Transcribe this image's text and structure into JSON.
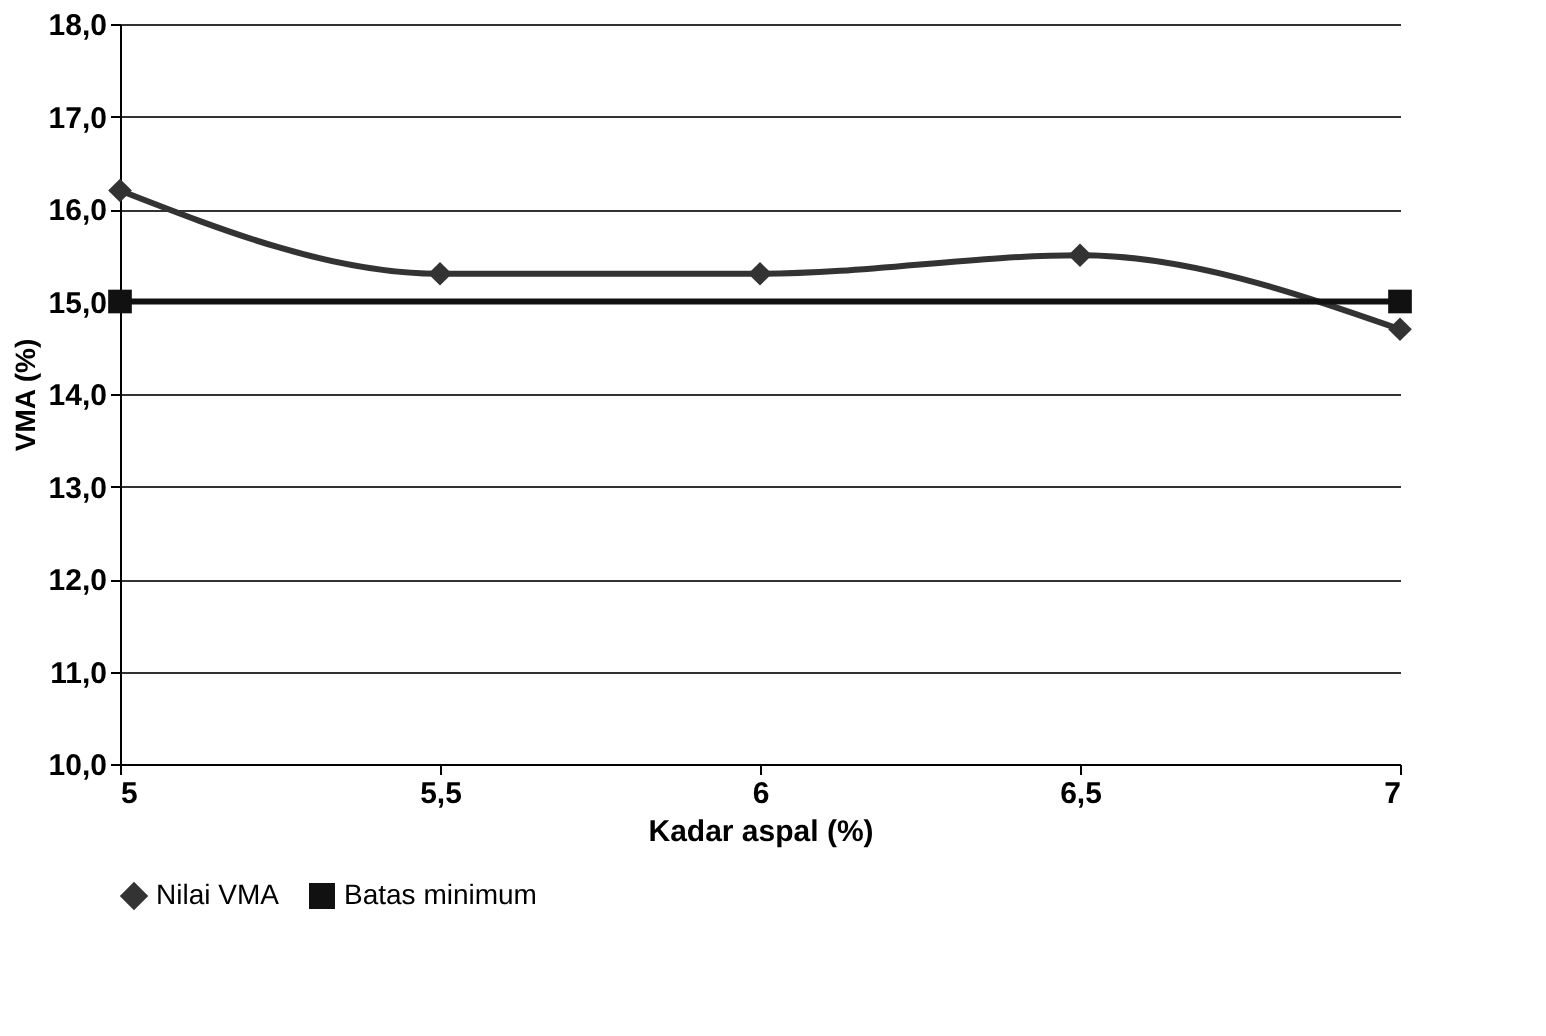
{
  "chart_data": {
    "type": "line",
    "xlabel": "Kadar aspal (%)",
    "ylabel": "VMA (%)",
    "x": [
      5,
      5.5,
      6,
      6.5,
      7
    ],
    "series": [
      {
        "name": "Nilai VMA",
        "color": "#333333",
        "marker": "diamond",
        "values": [
          16.2,
          15.3,
          15.3,
          15.5,
          14.7
        ]
      },
      {
        "name": "Batas minimum",
        "color": "#111111",
        "marker": "square",
        "x": [
          5,
          7
        ],
        "values": [
          15.0,
          15.0
        ]
      }
    ],
    "xlim": [
      5,
      7
    ],
    "xticks": [
      5,
      {
        "value": 5.5,
        "label": "5,5"
      },
      6,
      {
        "value": 6.5,
        "label": "6,5"
      },
      7
    ],
    "ylim": [
      10,
      18
    ],
    "yticks": [
      {
        "value": 10,
        "label": "10,0"
      },
      {
        "value": 11,
        "label": "11,0"
      },
      {
        "value": 12,
        "label": "12,0"
      },
      {
        "value": 13,
        "label": "13,0"
      },
      {
        "value": 14,
        "label": "14,0"
      },
      {
        "value": 15,
        "label": "15,0"
      },
      {
        "value": 16,
        "label": "16,0"
      },
      {
        "value": 17,
        "label": "17,0"
      },
      {
        "value": 18,
        "label": "18,0"
      }
    ],
    "grid": "y",
    "legend": "bottom",
    "line_style": "solid"
  }
}
